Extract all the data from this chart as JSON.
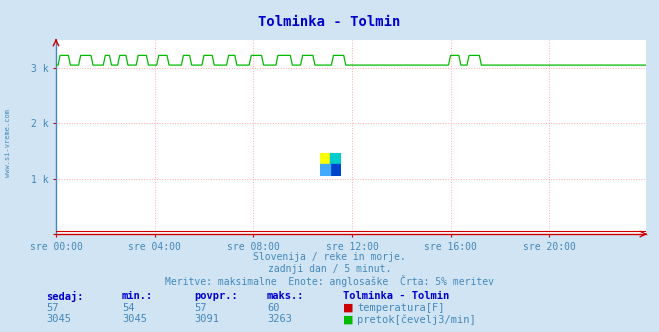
{
  "title": "Tolminka - Tolmin",
  "title_color": "#0000cc",
  "bg_color": "#d0e4f4",
  "plot_bg_color": "#ffffff",
  "grid_color": "#ffaaaa",
  "x_tick_labels": [
    "sre 00:00",
    "sre 04:00",
    "sre 08:00",
    "sre 12:00",
    "sre 16:00",
    "sre 20:00"
  ],
  "ylim": [
    0,
    3500
  ],
  "xlim_min": 0,
  "xlim_max": 287,
  "n_points": 288,
  "flow_base": 3045,
  "flow_spike_high": 3220,
  "flow_spike_regions": [
    [
      2,
      7
    ],
    [
      12,
      18
    ],
    [
      24,
      27
    ],
    [
      31,
      35
    ],
    [
      40,
      45
    ],
    [
      50,
      55
    ],
    [
      62,
      66
    ],
    [
      72,
      77
    ],
    [
      84,
      88
    ],
    [
      95,
      101
    ],
    [
      108,
      115
    ],
    [
      120,
      126
    ],
    [
      135,
      141
    ],
    [
      192,
      197
    ],
    [
      201,
      207
    ]
  ],
  "temp_value": 57,
  "flow_color": "#00bb00",
  "temp_color": "#cc0000",
  "axis_color": "#cc0000",
  "subtitle_color": "#4488bb",
  "subtitle1": "Slovenija / reke in morje.",
  "subtitle2": "zadnji dan / 5 minut.",
  "subtitle3": "Meritve: maksimalne  Enote: anglosaške  Črta: 5% meritev",
  "table_headers": [
    "sedaj:",
    "min.:",
    "povpr.:",
    "maks.:",
    "Tolminka - Tolmin"
  ],
  "table_row1": [
    "57",
    "54",
    "57",
    "60"
  ],
  "table_row2": [
    "3045",
    "3045",
    "3091",
    "3263"
  ],
  "legend1": "temperatura[F]",
  "legend2": "pretok[čevelj3/min]",
  "table_color": "#0000cc",
  "left_label": "www.si-vreme.com",
  "left_label_color": "#4488bb",
  "watermark_text": "www.si-vreme.com",
  "watermark_color": "#4477aa"
}
